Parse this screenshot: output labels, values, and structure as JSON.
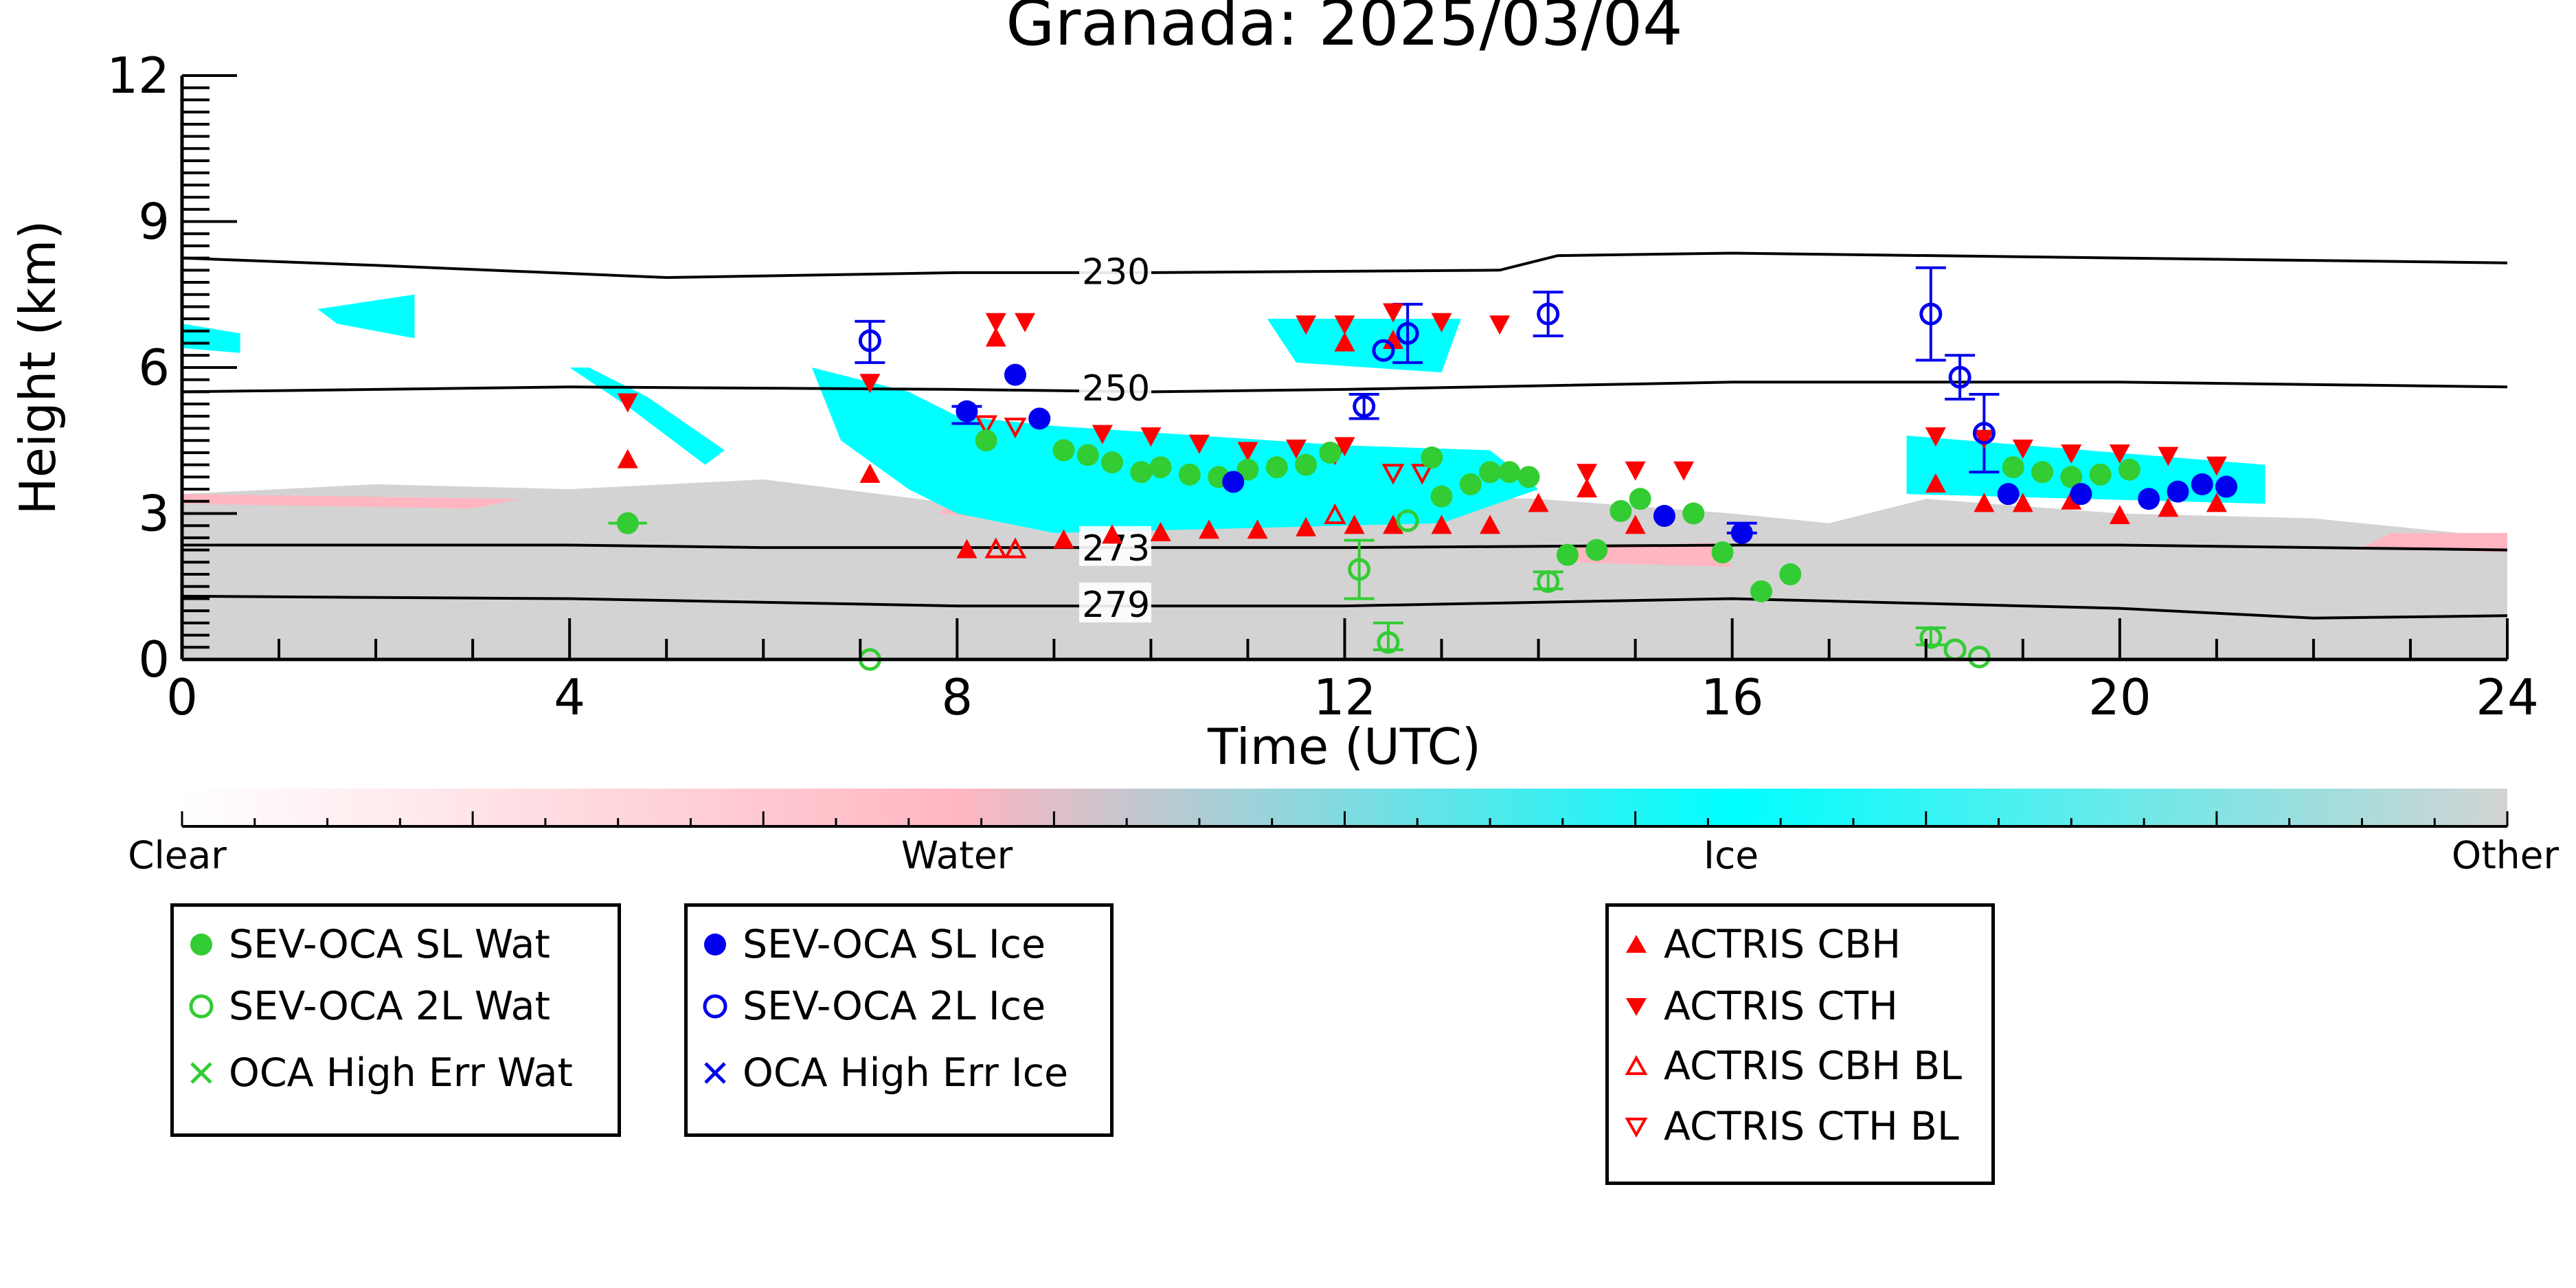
{
  "chart_data": {
    "type": "scatter",
    "title": "Granada: 2025/03/04",
    "xlabel": "Time (UTC)",
    "ylabel": "Height (km)",
    "xlim": [
      0,
      24
    ],
    "ylim": [
      0,
      12
    ],
    "x_ticks": [
      "0",
      "4",
      "8",
      "12",
      "16",
      "20",
      "24"
    ],
    "y_ticks": [
      "0",
      "3",
      "6",
      "9",
      "12"
    ],
    "colorbar": {
      "labels": [
        "Clear",
        "Water",
        "Ice",
        "Other"
      ],
      "colors": [
        "#ffffff",
        "#ffb6c1",
        "#00ffff",
        "#d3d3d3"
      ]
    },
    "isotherms": [
      {
        "label": "230",
        "points": [
          [
            0,
            8.25
          ],
          [
            2,
            8.1
          ],
          [
            5,
            7.85
          ],
          [
            8,
            7.95
          ],
          [
            10,
            7.95
          ],
          [
            13.6,
            8.0
          ],
          [
            14.2,
            8.3
          ],
          [
            16,
            8.35
          ],
          [
            20,
            8.25
          ],
          [
            24,
            8.15
          ]
        ]
      },
      {
        "label": "250",
        "points": [
          [
            0,
            5.5
          ],
          [
            4,
            5.6
          ],
          [
            8,
            5.55
          ],
          [
            10,
            5.5
          ],
          [
            12,
            5.55
          ],
          [
            16,
            5.7
          ],
          [
            20,
            5.7
          ],
          [
            24,
            5.6
          ]
        ]
      },
      {
        "label": "273",
        "points": [
          [
            0,
            2.35
          ],
          [
            4,
            2.35
          ],
          [
            6,
            2.3
          ],
          [
            8,
            2.3
          ],
          [
            12,
            2.3
          ],
          [
            16,
            2.35
          ],
          [
            20,
            2.35
          ],
          [
            24,
            2.25
          ]
        ]
      },
      {
        "label": "279",
        "points": [
          [
            0,
            1.3
          ],
          [
            4,
            1.25
          ],
          [
            8,
            1.1
          ],
          [
            12,
            1.1
          ],
          [
            16,
            1.25
          ],
          [
            20,
            1.05
          ],
          [
            22,
            0.85
          ],
          [
            24,
            0.9
          ]
        ]
      }
    ],
    "series": [
      {
        "name": "SEV-OCA SL Wat",
        "color": "#33cc33",
        "marker": "filled-circle",
        "points": [
          [
            4.6,
            2.8
          ],
          [
            8.3,
            4.5
          ],
          [
            9.1,
            4.3
          ],
          [
            9.35,
            4.2
          ],
          [
            9.6,
            4.05
          ],
          [
            9.9,
            3.85
          ],
          [
            10.1,
            3.95
          ],
          [
            10.4,
            3.8
          ],
          [
            10.7,
            3.75
          ],
          [
            11.0,
            3.9
          ],
          [
            11.3,
            3.95
          ],
          [
            11.6,
            4.0
          ],
          [
            11.85,
            4.25
          ],
          [
            12.9,
            4.15
          ],
          [
            13.0,
            3.35
          ],
          [
            13.3,
            3.6
          ],
          [
            13.5,
            3.85
          ],
          [
            13.7,
            3.85
          ],
          [
            13.9,
            3.75
          ],
          [
            14.3,
            2.15
          ],
          [
            14.6,
            2.25
          ],
          [
            14.85,
            3.05
          ],
          [
            15.05,
            3.3
          ],
          [
            15.6,
            3.0
          ],
          [
            15.9,
            2.2
          ],
          [
            16.3,
            1.4
          ],
          [
            16.6,
            1.75
          ],
          [
            18.9,
            3.95
          ],
          [
            19.2,
            3.85
          ],
          [
            19.5,
            3.75
          ],
          [
            19.8,
            3.8
          ],
          [
            20.1,
            3.9
          ]
        ]
      },
      {
        "name": "SEV-OCA 2L Wat",
        "color": "#33cc33",
        "marker": "open-circle",
        "points": [
          [
            7.1,
            0.0
          ],
          [
            12.15,
            1.85
          ],
          [
            12.45,
            0.35
          ],
          [
            12.65,
            2.85
          ],
          [
            14.1,
            1.6
          ],
          [
            18.05,
            0.45
          ],
          [
            18.3,
            0.2
          ],
          [
            18.55,
            0.05
          ]
        ]
      },
      {
        "name": "OCA High Err Wat",
        "color": "#33cc33",
        "marker": "x",
        "points": []
      },
      {
        "name": "SEV-OCA SL Ice",
        "color": "#0000ee",
        "marker": "filled-circle",
        "points": [
          [
            8.1,
            5.1
          ],
          [
            8.6,
            5.85
          ],
          [
            8.85,
            4.95
          ],
          [
            10.85,
            3.65
          ],
          [
            15.3,
            2.95
          ],
          [
            16.1,
            2.6
          ],
          [
            18.85,
            3.4
          ],
          [
            19.6,
            3.4
          ],
          [
            20.3,
            3.3
          ],
          [
            20.6,
            3.45
          ],
          [
            20.85,
            3.6
          ],
          [
            21.1,
            3.55
          ]
        ]
      },
      {
        "name": "SEV-OCA 2L Ice",
        "color": "#0000ee",
        "marker": "open-circle",
        "points": [
          [
            7.1,
            6.55
          ],
          [
            12.2,
            5.2
          ],
          [
            12.4,
            6.35
          ],
          [
            12.65,
            6.7
          ],
          [
            14.1,
            7.1
          ],
          [
            18.05,
            7.1
          ],
          [
            18.35,
            5.8
          ],
          [
            18.6,
            4.65
          ]
        ]
      },
      {
        "name": "OCA High Err Ice",
        "color": "#0000ee",
        "marker": "x",
        "points": []
      },
      {
        "name": "ACTRIS CBH",
        "color": "#ff0000",
        "marker": "filled-up-triangle",
        "points": [
          [
            4.6,
            4.1
          ],
          [
            7.1,
            3.8
          ],
          [
            8.1,
            2.25
          ],
          [
            9.1,
            2.45
          ],
          [
            9.6,
            2.55
          ],
          [
            10.1,
            2.6
          ],
          [
            10.6,
            2.65
          ],
          [
            11.1,
            2.65
          ],
          [
            11.6,
            2.7
          ],
          [
            12.1,
            2.75
          ],
          [
            12.5,
            2.75
          ],
          [
            13.0,
            2.75
          ],
          [
            13.5,
            2.75
          ],
          [
            14.0,
            3.2
          ],
          [
            14.5,
            3.5
          ],
          [
            15.0,
            2.75
          ],
          [
            18.1,
            3.6
          ],
          [
            18.6,
            3.2
          ],
          [
            19.0,
            3.2
          ],
          [
            19.5,
            3.25
          ],
          [
            20.0,
            2.95
          ],
          [
            20.5,
            3.1
          ],
          [
            21.0,
            3.2
          ],
          [
            12.0,
            6.5
          ],
          [
            12.5,
            6.55
          ],
          [
            8.4,
            6.6
          ]
        ]
      },
      {
        "name": "ACTRIS CTH",
        "color": "#ff0000",
        "marker": "filled-down-triangle",
        "points": [
          [
            4.6,
            5.3
          ],
          [
            7.1,
            5.7
          ],
          [
            8.4,
            6.95
          ],
          [
            8.7,
            6.95
          ],
          [
            9.5,
            4.65
          ],
          [
            10.0,
            4.6
          ],
          [
            10.5,
            4.45
          ],
          [
            11.0,
            4.3
          ],
          [
            11.5,
            4.35
          ],
          [
            12.0,
            4.4
          ],
          [
            11.6,
            6.9
          ],
          [
            12.0,
            6.9
          ],
          [
            12.5,
            7.15
          ],
          [
            13.0,
            6.95
          ],
          [
            13.6,
            6.9
          ],
          [
            14.5,
            3.85
          ],
          [
            15.0,
            3.9
          ],
          [
            15.5,
            3.9
          ],
          [
            18.1,
            4.6
          ],
          [
            18.6,
            4.55
          ],
          [
            19.0,
            4.35
          ],
          [
            19.5,
            4.25
          ],
          [
            20.0,
            4.25
          ],
          [
            20.5,
            4.2
          ],
          [
            21.0,
            4.0
          ]
        ]
      },
      {
        "name": "ACTRIS CBH BL",
        "color": "#ff0000",
        "marker": "open-up-triangle",
        "points": [
          [
            8.4,
            2.25
          ],
          [
            8.6,
            2.25
          ],
          [
            11.9,
            2.95
          ]
        ]
      },
      {
        "name": "ACTRIS CTH BL",
        "color": "#ff0000",
        "marker": "open-down-triangle",
        "points": [
          [
            8.3,
            4.85
          ],
          [
            8.6,
            4.8
          ],
          [
            11.9,
            4.25
          ],
          [
            12.5,
            3.85
          ],
          [
            12.8,
            3.85
          ]
        ]
      }
    ],
    "error_bars": [
      {
        "color": "#33cc33",
        "x": 4.6,
        "ylo": 2.8,
        "yhi": 2.8,
        "xlo": 4.4,
        "xhi": 4.8
      },
      {
        "color": "#33cc33",
        "x": 12.15,
        "ylo": 1.25,
        "yhi": 2.45
      },
      {
        "color": "#33cc33",
        "x": 12.45,
        "ylo": 0.2,
        "yhi": 0.75
      },
      {
        "color": "#33cc33",
        "x": 14.1,
        "ylo": 1.45,
        "yhi": 1.8
      },
      {
        "color": "#33cc33",
        "x": 18.05,
        "ylo": 0.3,
        "yhi": 0.65
      },
      {
        "color": "#0000ee",
        "x": 7.1,
        "ylo": 6.1,
        "yhi": 6.95
      },
      {
        "color": "#0000ee",
        "x": 12.2,
        "ylo": 4.95,
        "yhi": 5.45
      },
      {
        "color": "#0000ee",
        "x": 12.65,
        "ylo": 6.1,
        "yhi": 7.3
      },
      {
        "color": "#0000ee",
        "x": 14.1,
        "ylo": 6.65,
        "yhi": 7.55
      },
      {
        "color": "#0000ee",
        "x": 18.05,
        "ylo": 6.15,
        "yhi": 8.05
      },
      {
        "color": "#0000ee",
        "x": 18.35,
        "ylo": 5.35,
        "yhi": 6.25
      },
      {
        "color": "#0000ee",
        "x": 18.6,
        "ylo": 3.85,
        "yhi": 5.45
      },
      {
        "color": "#0000ee",
        "x": 16.1,
        "ylo": 2.6,
        "yhi": 2.8
      },
      {
        "color": "#0000ee",
        "x": 8.1,
        "ylo": 4.85,
        "yhi": 5.2
      }
    ],
    "classification_regions": [
      {
        "class": "Other",
        "polygon": [
          [
            0,
            0
          ],
          [
            0,
            3.4
          ],
          [
            2,
            3.6
          ],
          [
            4,
            3.5
          ],
          [
            6,
            3.7
          ],
          [
            8,
            3.2
          ],
          [
            10,
            3.5
          ],
          [
            12,
            3.4
          ],
          [
            14,
            3.3
          ],
          [
            16,
            3.0
          ],
          [
            17,
            2.8
          ],
          [
            18,
            3.3
          ],
          [
            20,
            3.0
          ],
          [
            22,
            2.9
          ],
          [
            24,
            2.5
          ],
          [
            24,
            0
          ]
        ]
      },
      {
        "class": "Water",
        "polygon": [
          [
            0,
            3.2
          ],
          [
            3,
            3.1
          ],
          [
            3.5,
            3.3
          ],
          [
            0,
            3.4
          ]
        ]
      },
      {
        "class": "Water",
        "polygon": [
          [
            7.8,
            3.0
          ],
          [
            9,
            2.8
          ],
          [
            9.2,
            3.1
          ],
          [
            8,
            3.3
          ]
        ]
      },
      {
        "class": "Water",
        "polygon": [
          [
            22.5,
            2.3
          ],
          [
            24,
            2.2
          ],
          [
            24,
            2.6
          ],
          [
            22.8,
            2.6
          ]
        ]
      },
      {
        "class": "Water",
        "polygon": [
          [
            14.3,
            2.0
          ],
          [
            16,
            1.9
          ],
          [
            15.8,
            2.4
          ],
          [
            14.3,
            2.3
          ]
        ]
      },
      {
        "class": "Ice",
        "polygon": [
          [
            4.0,
            6.0
          ],
          [
            4.6,
            5.2
          ],
          [
            5.4,
            4.0
          ],
          [
            5.6,
            4.3
          ],
          [
            4.8,
            5.4
          ],
          [
            4.2,
            6.0
          ]
        ]
      },
      {
        "class": "Ice",
        "polygon": [
          [
            6.5,
            6.0
          ],
          [
            7.5,
            5.5
          ],
          [
            8.0,
            5.0
          ],
          [
            9.0,
            4.8
          ],
          [
            12.0,
            4.4
          ],
          [
            13.5,
            4.3
          ],
          [
            14.0,
            3.5
          ],
          [
            13.0,
            2.8
          ],
          [
            9.0,
            2.6
          ],
          [
            8.0,
            3.0
          ],
          [
            7.5,
            3.5
          ],
          [
            6.8,
            4.5
          ]
        ]
      },
      {
        "class": "Ice",
        "polygon": [
          [
            11.2,
            7.0
          ],
          [
            13.2,
            7.0
          ],
          [
            13.0,
            5.9
          ],
          [
            11.5,
            6.1
          ]
        ]
      },
      {
        "class": "Ice",
        "polygon": [
          [
            17.8,
            4.6
          ],
          [
            21.5,
            4.0
          ],
          [
            21.5,
            3.2
          ],
          [
            17.8,
            3.4
          ]
        ]
      },
      {
        "class": "Ice",
        "polygon": [
          [
            0,
            6.9
          ],
          [
            0.6,
            6.7
          ],
          [
            0.6,
            6.3
          ],
          [
            0,
            6.4
          ]
        ]
      },
      {
        "class": "Ice",
        "polygon": [
          [
            1.4,
            7.2
          ],
          [
            2.4,
            7.5
          ],
          [
            2.4,
            6.6
          ],
          [
            1.6,
            6.9
          ]
        ]
      }
    ],
    "legend": {
      "placement": "below",
      "groups": [
        [
          "SEV-OCA SL Wat",
          "SEV-OCA 2L Wat",
          "OCA High Err Wat"
        ],
        [
          "SEV-OCA SL Ice",
          "SEV-OCA 2L Ice",
          "OCA High Err Ice"
        ],
        [
          "ACTRIS CBH",
          "ACTRIS CTH",
          "ACTRIS CBH BL",
          "ACTRIS CTH BL"
        ]
      ]
    }
  }
}
